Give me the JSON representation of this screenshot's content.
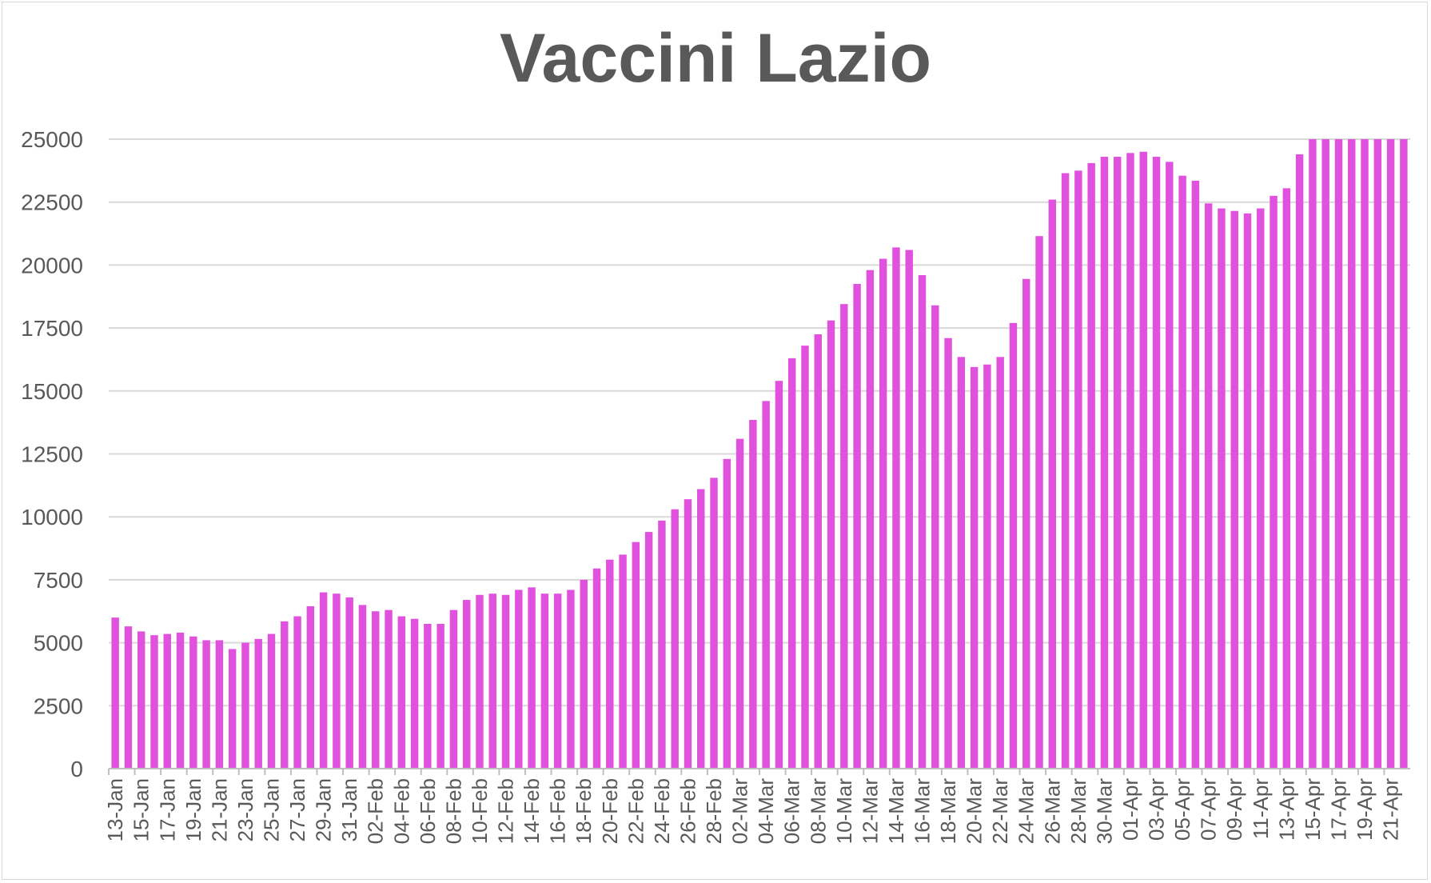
{
  "chart_data": {
    "type": "bar",
    "title": "Vaccini Lazio",
    "xlabel": "",
    "ylabel": "",
    "ylim": [
      0,
      25000
    ],
    "yticks": [
      0,
      2500,
      5000,
      7500,
      10000,
      12500,
      15000,
      17500,
      20000,
      22500,
      25000
    ],
    "grid": true,
    "legend": "none",
    "bar_color": "#e052de",
    "x_tick_labels": [
      "13-Jan",
      "15-Jan",
      "17-Jan",
      "19-Jan",
      "21-Jan",
      "23-Jan",
      "25-Jan",
      "27-Jan",
      "29-Jan",
      "31-Jan",
      "02-Feb",
      "04-Feb",
      "06-Feb",
      "08-Feb",
      "10-Feb",
      "12-Feb",
      "14-Feb",
      "16-Feb",
      "18-Feb",
      "20-Feb",
      "22-Feb",
      "24-Feb",
      "26-Feb",
      "28-Feb",
      "02-Mar",
      "04-Mar",
      "06-Mar",
      "08-Mar",
      "10-Mar",
      "12-Mar",
      "14-Mar",
      "16-Mar",
      "18-Mar",
      "20-Mar",
      "22-Mar",
      "24-Mar",
      "26-Mar",
      "28-Mar",
      "30-Mar",
      "01-Apr",
      "03-Apr",
      "05-Apr",
      "07-Apr",
      "09-Apr",
      "11-Apr",
      "13-Apr",
      "15-Apr",
      "17-Apr",
      "19-Apr",
      "21-Apr"
    ],
    "start_label": "13-Jan",
    "values": [
      6000,
      5650,
      5450,
      5300,
      5350,
      5400,
      5250,
      5100,
      5100,
      4750,
      5000,
      5150,
      5350,
      5850,
      6050,
      6450,
      7000,
      6950,
      6800,
      6500,
      6250,
      6300,
      6050,
      5950,
      5750,
      5750,
      6300,
      6700,
      6900,
      6950,
      6900,
      7100,
      7200,
      6950,
      6950,
      7100,
      7500,
      7950,
      8300,
      8500,
      9000,
      9400,
      9850,
      10300,
      10700,
      11100,
      11550,
      12300,
      13100,
      13850,
      14600,
      15400,
      16300,
      16800,
      17250,
      17800,
      18450,
      19250,
      19800,
      20250,
      20700,
      20600,
      19600,
      18400,
      17100,
      16350,
      15950,
      16050,
      16350,
      17700,
      19450,
      21150,
      22600,
      23650,
      23750,
      24050,
      24300,
      24300,
      24450,
      24500,
      24300,
      24100,
      23550,
      23350,
      22450,
      22250,
      22150,
      22050,
      22250,
      22750,
      23050,
      24400,
      25000,
      25000,
      25000,
      25000,
      25000,
      25000,
      25000,
      25000
    ]
  }
}
